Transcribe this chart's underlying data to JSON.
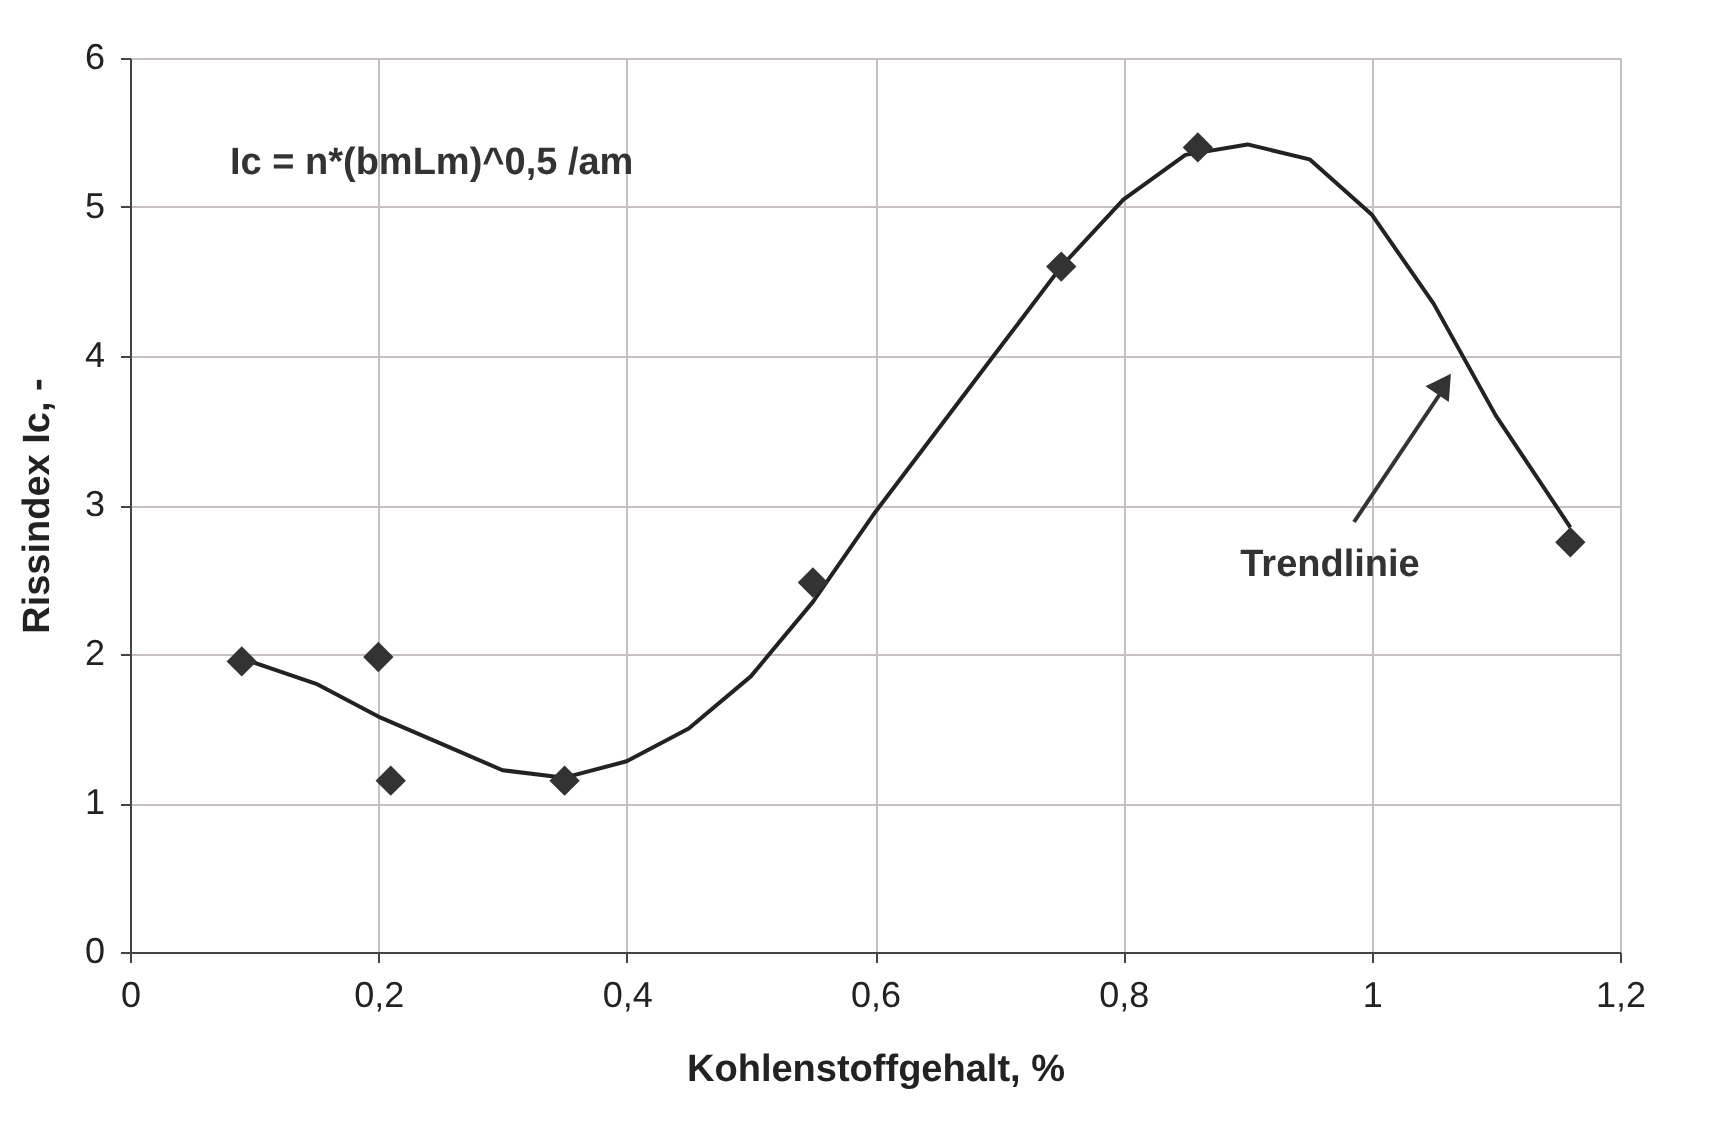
{
  "chart_data": {
    "type": "scatter",
    "xlabel": "Kohlenstoffgehalt, %",
    "ylabel": "Rissindex Ic, -",
    "x": [
      0.09,
      0.2,
      0.21,
      0.35,
      0.55,
      0.75,
      0.86,
      1.16
    ],
    "series": [
      {
        "type": "scatter",
        "color": "#333333",
        "marker": "diamond",
        "values": [
          1.95,
          1.98,
          1.15,
          1.15,
          2.48,
          4.6,
          5.4,
          2.75
        ]
      },
      {
        "type": "line",
        "color": "#222222",
        "marker": "none",
        "line_style": "solid",
        "x": [
          0.09,
          0.15,
          0.2,
          0.25,
          0.3,
          0.35,
          0.4,
          0.45,
          0.5,
          0.55,
          0.6,
          0.65,
          0.7,
          0.75,
          0.8,
          0.85,
          0.9,
          0.95,
          1.0,
          1.05,
          1.1,
          1.16
        ],
        "values": [
          1.97,
          1.8,
          1.58,
          1.4,
          1.22,
          1.17,
          1.28,
          1.5,
          1.85,
          2.35,
          2.95,
          3.5,
          4.05,
          4.6,
          5.05,
          5.35,
          5.42,
          5.32,
          4.95,
          4.35,
          3.6,
          2.85
        ]
      }
    ],
    "xlim": [
      0,
      1.2
    ],
    "ylim": [
      0,
      6
    ],
    "xticks": [
      0,
      {
        "value": 0.2,
        "label": "0,2"
      },
      {
        "value": 0.4,
        "label": "0,4"
      },
      {
        "value": 0.6,
        "label": "0,6"
      },
      {
        "value": 0.8,
        "label": "0,8"
      },
      1,
      {
        "value": 1.2,
        "label": "1,2"
      }
    ],
    "yticks": [
      0,
      1,
      2,
      3,
      4,
      5,
      6
    ],
    "grid": true,
    "legend": false,
    "annotations": [
      "Ic = n*(bmLm)^0,5 /am",
      "Trendlinie"
    ]
  }
}
